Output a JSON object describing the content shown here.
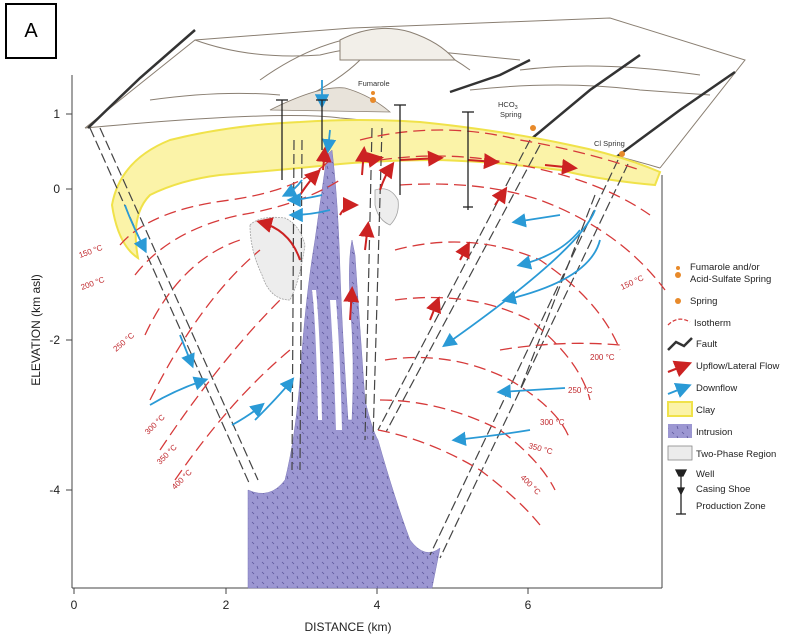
{
  "panel_label": "A",
  "axes": {
    "xlabel": "DISTANCE (km)",
    "ylabel": "ELEVATION (km asl)",
    "x_ticks": [
      "0",
      "2",
      "4",
      "6"
    ],
    "y_ticks": [
      "1",
      "0",
      "-2",
      "-4"
    ]
  },
  "surface_labels": {
    "fumarole": "Fumarole",
    "hco3_spring_main": "HCO",
    "hco3_spring_sub": "3",
    "hco3_spring_word": "Spring",
    "cl_spring": "Cl Spring"
  },
  "isotherms_left": [
    "150 °C",
    "200 °C",
    "250 °C",
    "300 °C",
    "350 °C",
    "400 °C"
  ],
  "isotherms_right": [
    "150 °C",
    "200 °C",
    "250 °C",
    "300 °C",
    "350 °C",
    "400 °C"
  ],
  "legend": [
    {
      "id": "fumarole",
      "line1": "Fumarole and/or",
      "line2": "Acid-Sulfate Spring"
    },
    {
      "id": "spring",
      "line1": "Spring",
      "line2": ""
    },
    {
      "id": "isotherm",
      "line1": "Isotherm",
      "line2": ""
    },
    {
      "id": "fault",
      "line1": "Fault",
      "line2": ""
    },
    {
      "id": "upflow",
      "line1": "Upflow/Lateral Flow",
      "line2": ""
    },
    {
      "id": "downflow",
      "line1": "Downflow",
      "line2": ""
    },
    {
      "id": "clay",
      "line1": "Clay",
      "line2": ""
    },
    {
      "id": "intrusion",
      "line1": "Intrusion",
      "line2": ""
    },
    {
      "id": "two-phase",
      "line1": "Two-Phase Region",
      "line2": ""
    },
    {
      "id": "well",
      "line1": "Well",
      "line2": "Casing Shoe",
      "line3": "Production Zone"
    }
  ],
  "colors": {
    "clay": "#fbf3a8",
    "clay_edge": "#f0e24a",
    "intrusion": "#9c97d2",
    "isotherm": "#d63a3a",
    "upflow": "#cc2222",
    "downflow": "#2a9ad6",
    "fault": "#333333"
  }
}
